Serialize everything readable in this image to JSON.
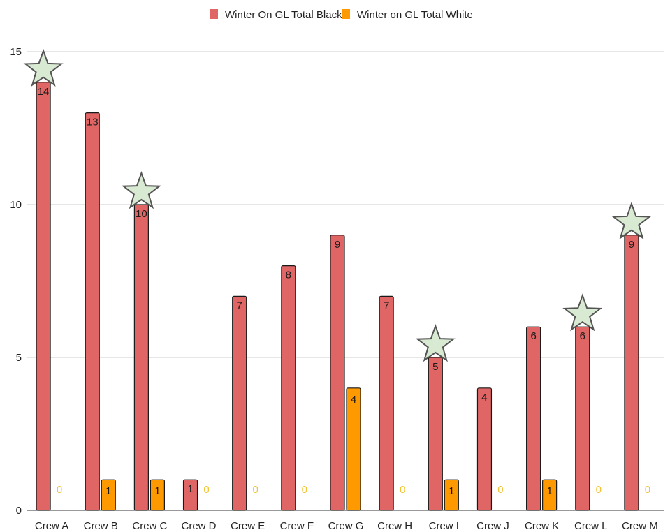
{
  "chart_data": {
    "type": "bar",
    "title": "",
    "xlabel": "",
    "ylabel": "",
    "ylim": [
      0,
      15
    ],
    "yticks": [
      0,
      5,
      10,
      15
    ],
    "grid": true,
    "legend_position": "top-center",
    "categories": [
      "Crew A",
      "Crew B",
      "Crew C",
      "Crew D",
      "Crew E",
      "Crew F",
      "Crew G",
      "Crew H",
      "Crew I",
      "Crew J",
      "Crew K",
      "Crew L",
      "Crew M"
    ],
    "series": [
      {
        "name": "Winter On GL Total Black",
        "color": "#e06666",
        "values": [
          14,
          13,
          10,
          1,
          7,
          8,
          9,
          7,
          5,
          4,
          6,
          6,
          9
        ]
      },
      {
        "name": "Winter on GL Total White",
        "color": "#ff9900",
        "values": [
          0,
          1,
          1,
          0,
          0,
          0,
          4,
          0,
          1,
          0,
          1,
          0,
          0
        ]
      }
    ],
    "star_markers": {
      "color": "#d9ead3",
      "categories": [
        "Crew A",
        "Crew C",
        "Crew I",
        "Crew L",
        "Crew M"
      ]
    }
  }
}
